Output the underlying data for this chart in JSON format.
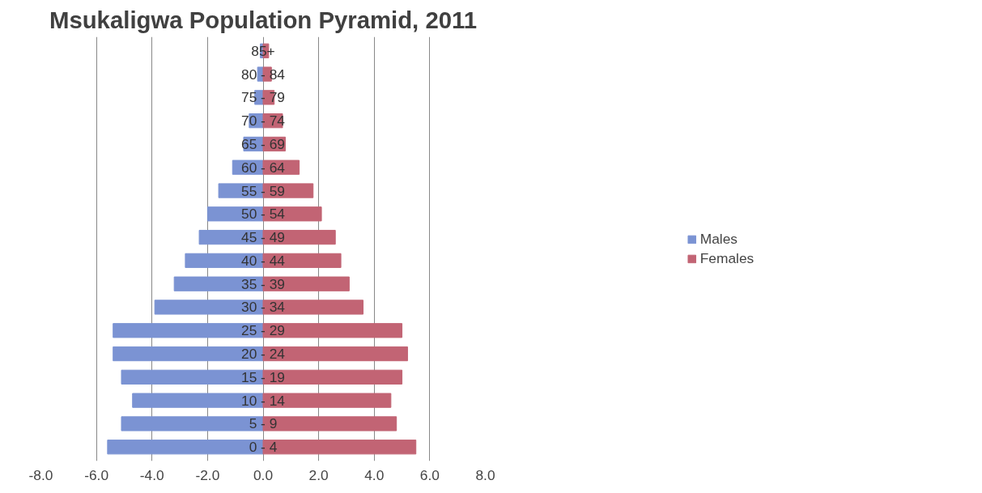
{
  "chart_data": {
    "type": "bar",
    "orientation": "horizontal",
    "stacked": true,
    "title": "Msukaligwa Population Pyramid, 2011",
    "categories": [
      "85+",
      "80 - 84",
      "75 - 79",
      "70 - 74",
      "65 - 69",
      "60 - 64",
      "55 - 59",
      "50 - 54",
      "45 - 49",
      "40 - 44",
      "35 - 39",
      "30 - 34",
      "25 - 29",
      "20 - 24",
      "15 - 19",
      "10 - 14",
      "5 - 9",
      "0 - 4"
    ],
    "series": [
      {
        "name": "Males",
        "color": "#7b93d3",
        "values": [
          -0.1,
          -0.2,
          -0.3,
          -0.5,
          -0.7,
          -1.1,
          -1.6,
          -2.0,
          -2.3,
          -2.8,
          -3.2,
          -3.9,
          -5.4,
          -5.4,
          -5.1,
          -4.7,
          -5.1,
          -5.6
        ]
      },
      {
        "name": "Females",
        "color": "#c26474",
        "values": [
          0.2,
          0.3,
          0.4,
          0.7,
          0.8,
          1.3,
          1.8,
          2.1,
          2.6,
          2.8,
          3.1,
          3.6,
          5.0,
          5.2,
          5.0,
          4.6,
          4.8,
          5.5
        ]
      }
    ],
    "xlim": [
      -8,
      8
    ],
    "xticks": [
      {
        "value": -8,
        "label": "-8.0"
      },
      {
        "value": -6,
        "label": "-6.0"
      },
      {
        "value": -4,
        "label": "-4.0"
      },
      {
        "value": -2,
        "label": "-2.0"
      },
      {
        "value": 0,
        "label": "0.0"
      },
      {
        "value": 2,
        "label": "2.0"
      },
      {
        "value": 4,
        "label": "4.0"
      },
      {
        "value": 6,
        "label": "6.0"
      },
      {
        "value": 8,
        "label": "8.0"
      }
    ],
    "grid": "x",
    "legend": "right"
  }
}
